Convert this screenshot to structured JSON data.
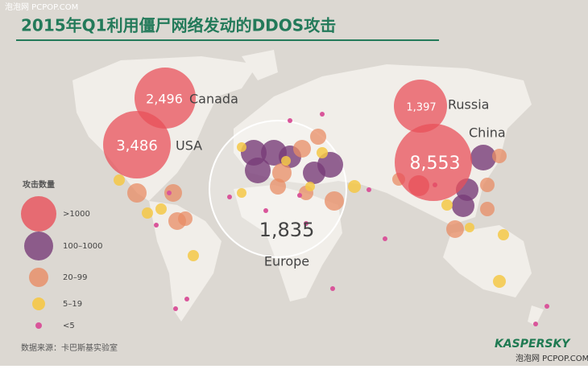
{
  "watermark_top": "泡泡网 PCPOP.COM",
  "title": "2015年Q1利用僵尸网络发动的DDOS攻击",
  "regions": [
    {
      "name": "Canada",
      "value": "2,496"
    },
    {
      "name": "USA",
      "value": "3,486"
    },
    {
      "name": "Russia",
      "value": "1,397"
    },
    {
      "name": "China",
      "value": "8,553"
    },
    {
      "name": "Europe",
      "value": "1,835"
    }
  ],
  "legend": {
    "title": "攻击数量",
    "items": [
      ">1000",
      "100–1000",
      "20–99",
      "5–19",
      "<5"
    ]
  },
  "source": "数据来源：卡巴斯基实验室",
  "logo": "KASPERSKY",
  "watermark_bottom": "泡泡网 PCPOP.COM"
}
